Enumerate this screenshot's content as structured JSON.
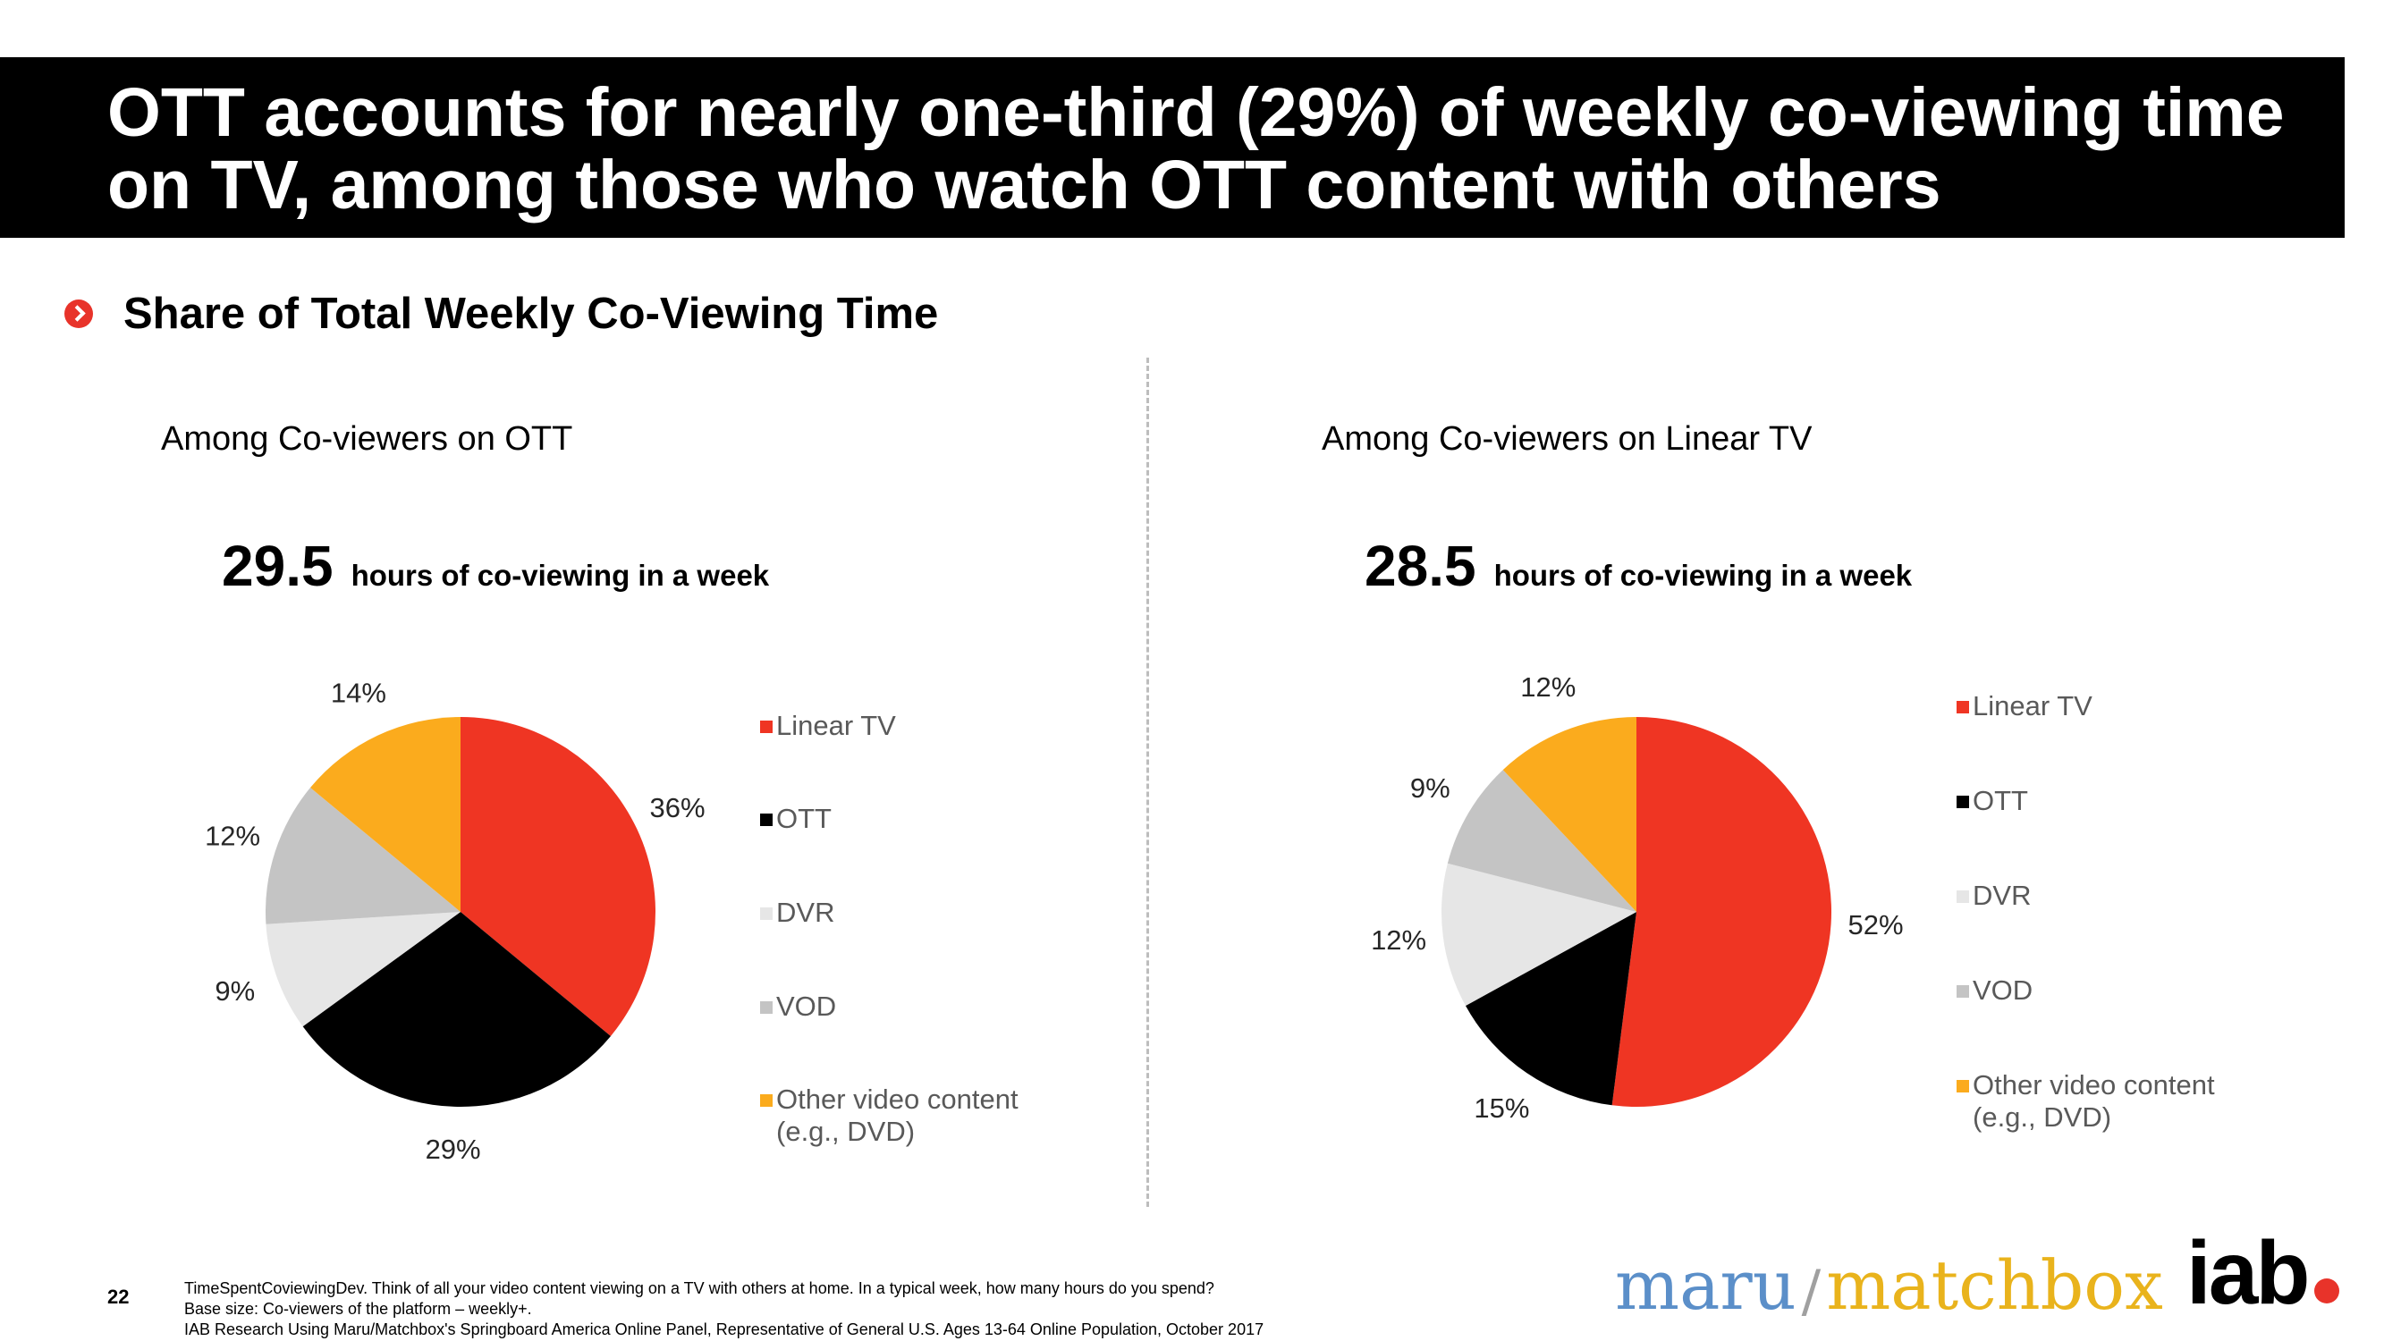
{
  "header": {
    "title": "OTT accounts for nearly one-third (29%) of weekly co-viewing time on TV, among those who watch OTT content with others",
    "subtitle": "Share of Total Weekly Co-Viewing Time"
  },
  "colors": {
    "linear_tv": "#ef3523",
    "ott": "#000000",
    "dvr": "#e6e6e6",
    "vod": "#c4c4c4",
    "other": "#fbab1d",
    "accent": "#e8332a"
  },
  "panels": [
    {
      "title": "Among Co-viewers on OTT",
      "hours_value": "29.5",
      "hours_label": "hours of co-viewing in a week"
    },
    {
      "title": "Among Co-viewers on Linear TV",
      "hours_value": "28.5",
      "hours_label": "hours of co-viewing in a week"
    }
  ],
  "chart_data": [
    {
      "type": "pie",
      "title": "Among Co-viewers on OTT",
      "labels": [
        "Linear TV",
        "OTT",
        "DVR",
        "VOD",
        "Other video content (e.g., DVD)"
      ],
      "values": [
        36,
        29,
        9,
        12,
        14
      ],
      "data_labels": [
        "36%",
        "29%",
        "9%",
        "12%",
        "14%"
      ],
      "legend": "right"
    },
    {
      "type": "pie",
      "title": "Among Co-viewers on Linear TV",
      "labels": [
        "Linear TV",
        "OTT",
        "DVR",
        "VOD",
        "Other video content (e.g., DVD)"
      ],
      "values": [
        52,
        15,
        12,
        9,
        12
      ],
      "data_labels": [
        "52%",
        "15%",
        "12%",
        "9%",
        "12%"
      ],
      "legend": "right"
    }
  ],
  "legend": {
    "items": [
      "Linear TV",
      "OTT",
      "DVR",
      "VOD"
    ],
    "other_line1": "Other video content",
    "other_line2": "(e.g., DVD)"
  },
  "footer": {
    "page_number": "22",
    "note1": "TimeSpentCoviewingDev.  Think of all your video content viewing on a TV with others at home. In a typical week, how many hours do you spend?",
    "note2": "Base size: Co-viewers of the platform – weekly+.",
    "note3": "IAB Research Using Maru/Matchbox's Springboard America Online Panel, Representative of General U.S. Ages 13-64 Online Population, October 2017"
  },
  "logos": {
    "maru": "maru",
    "slash": "/",
    "matchbox": "matchbox",
    "iab": "iab"
  }
}
